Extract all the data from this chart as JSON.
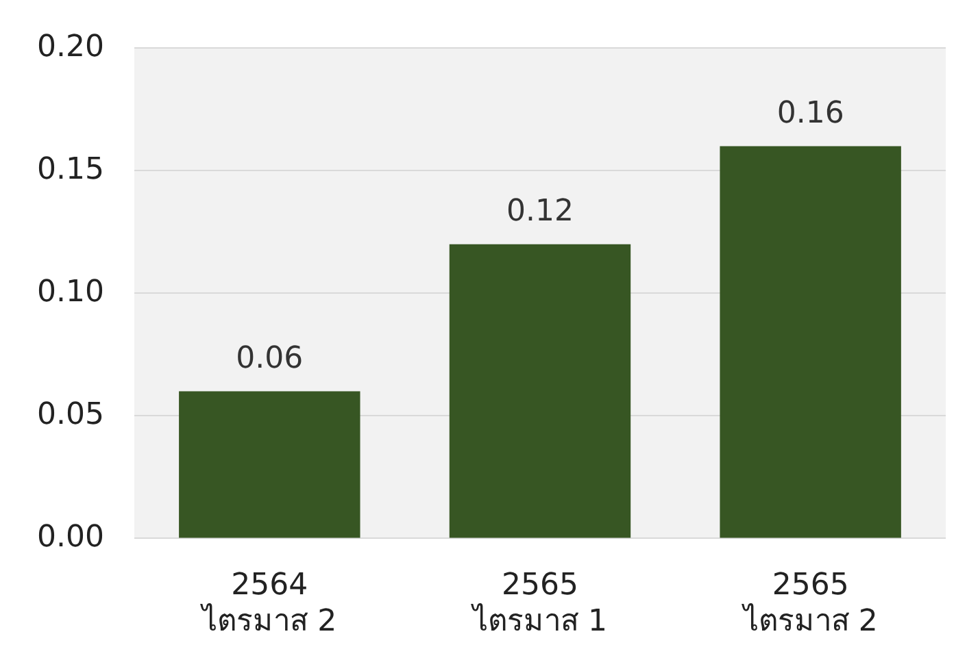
{
  "chart_data": {
    "type": "bar",
    "categories": [
      "2564\nไตรมาส 2",
      "2565\nไตรมาส 1",
      "2565\nไตรมาส 2"
    ],
    "values": [
      0.06,
      0.12,
      0.16
    ],
    "color": "#375623",
    "ylim": [
      0,
      0.2
    ],
    "yticks": [
      {
        "value": 0,
        "label": "0.00"
      },
      {
        "value": 0.05,
        "label": "0.05"
      },
      {
        "value": 0.1,
        "label": "0.10"
      },
      {
        "value": 0.15,
        "label": "0.15"
      },
      {
        "value": 0.2,
        "label": "0.20"
      }
    ],
    "grid": "y",
    "data_labels": true,
    "legend": false
  }
}
